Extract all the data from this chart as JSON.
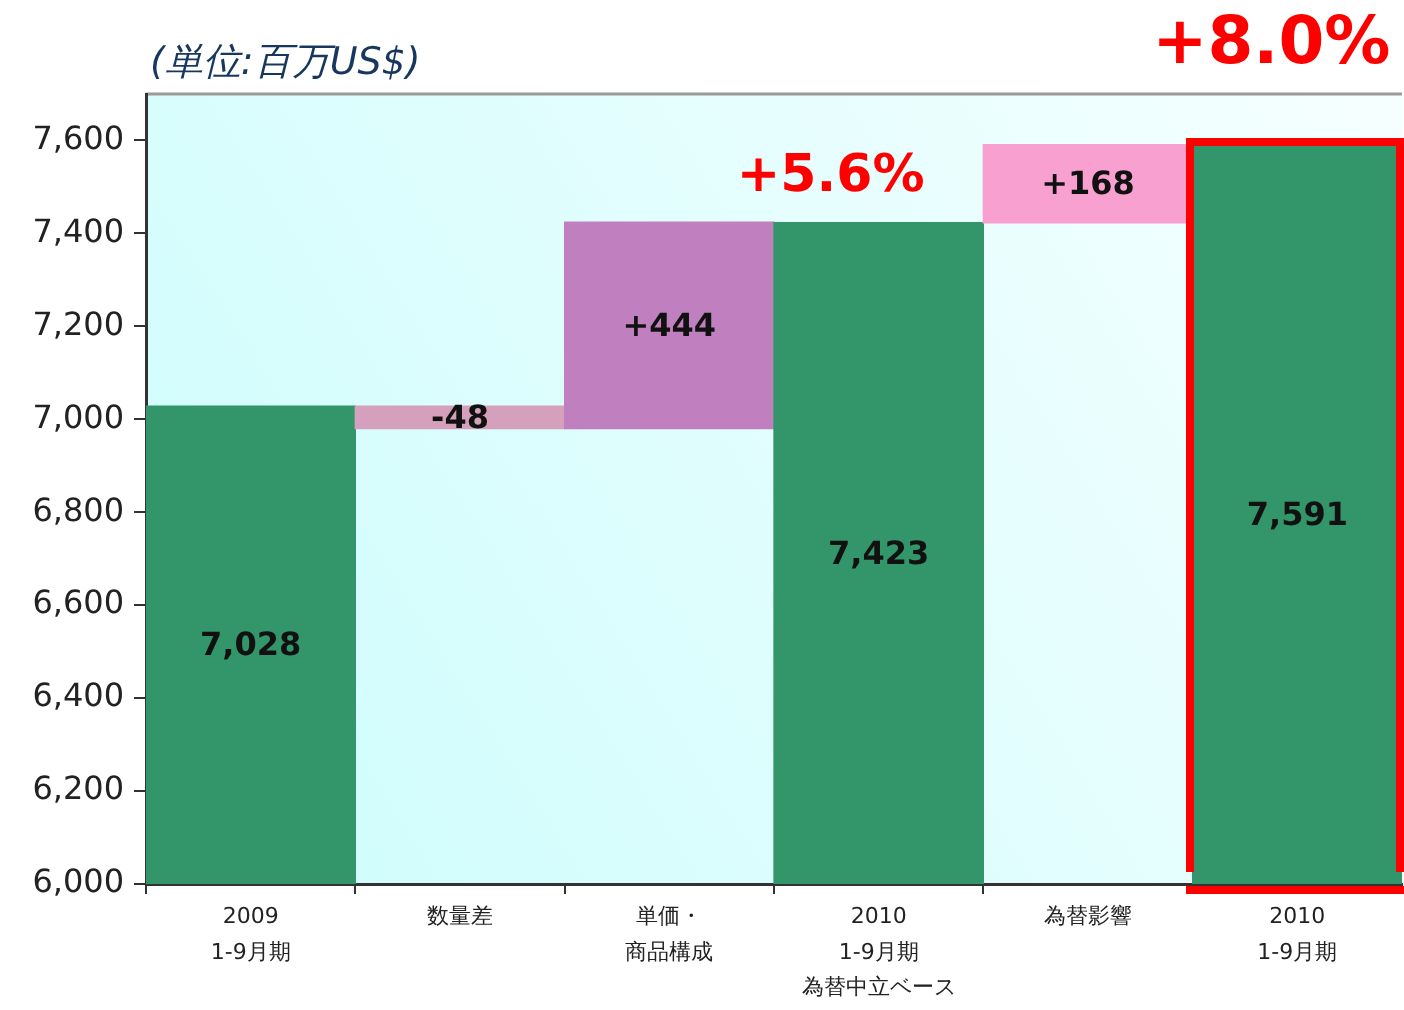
{
  "chart_data": {
    "type": "bar",
    "annotations": [
      "(単位:百万US$)",
      {
        "text": "+5.6%",
        "x": "2010\n1-9月期為替中立ベース",
        "y": 7423
      },
      {
        "text": "+8.0%",
        "x": "2010\n1-9月期",
        "y": 7591
      }
    ],
    "categories": [
      "2009\n1-9月期",
      "数量差",
      "単価・商品構成",
      "2010\n1-9月期為替中立ベース",
      "為替影響",
      "2010\n1-9月期"
    ],
    "values": [
      7028,
      -48,
      444,
      7423,
      168,
      7591
    ],
    "base": [
      null,
      7028,
      6980,
      null,
      7423,
      null
    ],
    "colors": [
      "#33966a",
      "#d4a0bc",
      "#c080c0",
      "#33966a",
      "#f8a0d0",
      "#33966a"
    ],
    "value_labels": [
      "7,028",
      "-48",
      "+444",
      "7,423",
      "+168",
      "7,591"
    ],
    "ylim": [
      6000,
      7700
    ],
    "yticks": [
      {
        "value": 6000,
        "label": "6,000"
      },
      {
        "value": 6200,
        "label": "6,200"
      },
      {
        "value": 6400,
        "label": "6,400"
      },
      {
        "value": 6600,
        "label": "6,600"
      },
      {
        "value": 6800,
        "label": "6,800"
      },
      {
        "value": 7000,
        "label": "7,000"
      },
      {
        "value": 7200,
        "label": "7,200"
      },
      {
        "value": 7400,
        "label": "7,400"
      },
      {
        "value": 7600,
        "label": "7,600"
      }
    ]
  }
}
